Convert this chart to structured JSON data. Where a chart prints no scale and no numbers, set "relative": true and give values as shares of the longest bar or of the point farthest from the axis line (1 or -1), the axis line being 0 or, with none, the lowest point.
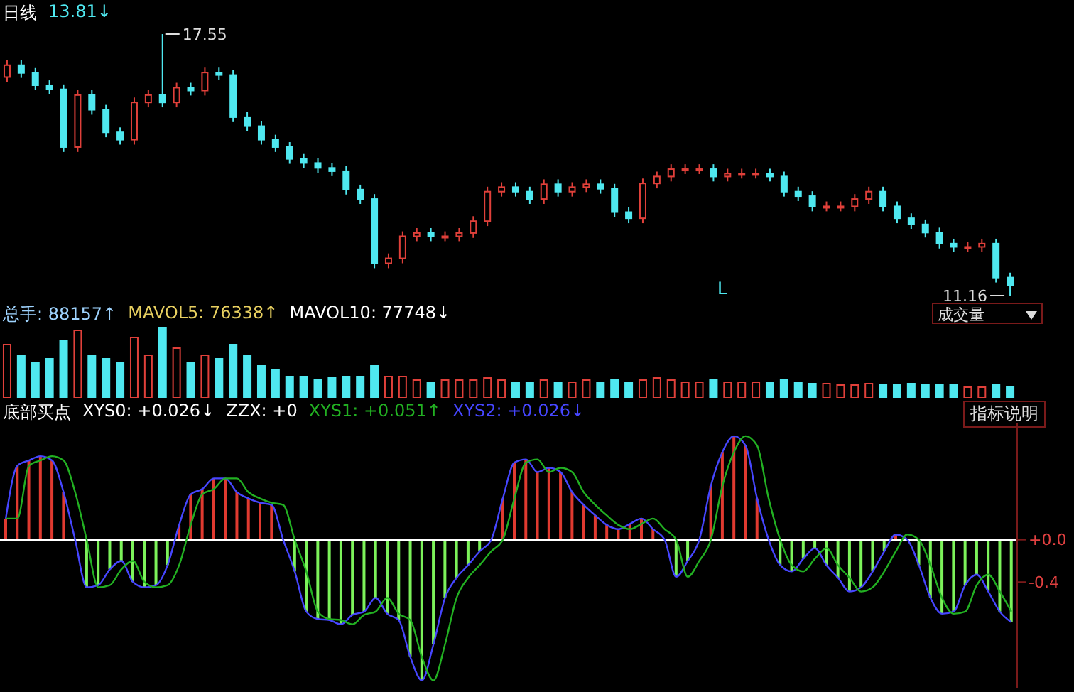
{
  "chart_data": [
    {
      "type": "candlestick",
      "title": "日线",
      "legend": false,
      "annotations": [
        "13.81↓",
        "17.55",
        "11.16",
        "L"
      ],
      "categories": [
        null,
        null,
        null,
        null,
        null,
        null,
        null,
        null,
        null,
        null,
        null,
        null,
        null,
        null,
        null,
        null,
        null,
        null,
        null,
        null,
        null,
        null,
        null,
        null,
        null,
        null,
        null,
        null,
        null,
        null,
        null,
        null,
        null,
        null,
        null,
        null,
        null,
        null,
        null,
        null,
        null,
        null,
        null,
        null,
        null,
        null,
        null,
        null,
        null,
        null,
        null,
        null,
        null,
        null,
        null,
        null,
        null,
        null,
        null,
        null,
        null,
        null,
        null,
        null,
        null,
        null,
        null,
        null,
        null,
        null,
        null,
        null
      ],
      "ohlc": [
        [
          16.5,
          16.91,
          16.38,
          16.79
        ],
        [
          16.79,
          16.91,
          16.48,
          16.6
        ],
        [
          16.6,
          16.72,
          16.18,
          16.3
        ],
        [
          16.3,
          16.42,
          16.08,
          16.2
        ],
        [
          16.2,
          16.32,
          14.67,
          14.79
        ],
        [
          14.79,
          16.18,
          14.67,
          16.06
        ],
        [
          16.06,
          16.18,
          15.58,
          15.7
        ],
        [
          15.7,
          15.82,
          15.03,
          15.15
        ],
        [
          15.15,
          15.27,
          14.85,
          14.97
        ],
        [
          14.97,
          16.0,
          14.85,
          15.88
        ],
        [
          15.88,
          16.18,
          15.76,
          16.06
        ],
        [
          16.06,
          17.55,
          15.76,
          15.88
        ],
        [
          15.88,
          16.36,
          15.76,
          16.24
        ],
        [
          16.24,
          16.36,
          16.05,
          16.17
        ],
        [
          16.17,
          16.73,
          16.05,
          16.61
        ],
        [
          16.61,
          16.73,
          16.43,
          16.55
        ],
        [
          16.55,
          16.67,
          15.4,
          15.52
        ],
        [
          15.52,
          15.64,
          15.18,
          15.3
        ],
        [
          15.3,
          15.42,
          14.85,
          14.97
        ],
        [
          14.97,
          15.09,
          14.67,
          14.79
        ],
        [
          14.79,
          14.91,
          14.38,
          14.5
        ],
        [
          14.5,
          14.62,
          14.28,
          14.4
        ],
        [
          14.4,
          14.52,
          14.16,
          14.28
        ],
        [
          14.28,
          14.4,
          14.08,
          14.2
        ],
        [
          14.2,
          14.32,
          13.63,
          13.75
        ],
        [
          13.75,
          13.87,
          13.4,
          13.52
        ],
        [
          13.52,
          13.64,
          11.83,
          11.95
        ],
        [
          11.95,
          12.19,
          11.83,
          12.07
        ],
        [
          12.07,
          12.73,
          11.95,
          12.61
        ],
        [
          12.61,
          12.81,
          12.49,
          12.69
        ],
        [
          12.69,
          12.81,
          12.49,
          12.61
        ],
        [
          12.61,
          12.73,
          12.49,
          12.61
        ],
        [
          12.61,
          12.81,
          12.49,
          12.69
        ],
        [
          12.69,
          13.1,
          12.57,
          12.98
        ],
        [
          12.98,
          13.82,
          12.86,
          13.7
        ],
        [
          13.7,
          13.93,
          13.58,
          13.81
        ],
        [
          13.81,
          13.93,
          13.58,
          13.7
        ],
        [
          13.7,
          13.82,
          13.4,
          13.52
        ],
        [
          13.52,
          14.0,
          13.4,
          13.88
        ],
        [
          13.88,
          14.0,
          13.58,
          13.7
        ],
        [
          13.7,
          13.93,
          13.58,
          13.81
        ],
        [
          13.81,
          14.0,
          13.69,
          13.88
        ],
        [
          13.88,
          14.0,
          13.65,
          13.77
        ],
        [
          13.77,
          13.89,
          13.08,
          13.2
        ],
        [
          13.2,
          13.32,
          12.93,
          13.05
        ],
        [
          13.05,
          14.02,
          12.93,
          13.9
        ],
        [
          13.9,
          14.19,
          13.78,
          14.07
        ],
        [
          14.07,
          14.37,
          13.95,
          14.25
        ],
        [
          14.25,
          14.37,
          14.13,
          14.25
        ],
        [
          14.25,
          14.37,
          14.13,
          14.25
        ],
        [
          14.25,
          14.37,
          13.95,
          14.07
        ],
        [
          14.07,
          14.26,
          13.95,
          14.14
        ],
        [
          14.14,
          14.26,
          14.02,
          14.14
        ],
        [
          14.14,
          14.26,
          14.02,
          14.14
        ],
        [
          14.14,
          14.26,
          13.95,
          14.07
        ],
        [
          14.07,
          14.19,
          13.58,
          13.7
        ],
        [
          13.7,
          13.82,
          13.47,
          13.59
        ],
        [
          13.59,
          13.71,
          13.22,
          13.34
        ],
        [
          13.34,
          13.46,
          13.22,
          13.34
        ],
        [
          13.34,
          13.46,
          13.22,
          13.34
        ],
        [
          13.34,
          13.64,
          13.22,
          13.52
        ],
        [
          13.52,
          13.82,
          13.4,
          13.7
        ],
        [
          13.7,
          13.82,
          13.22,
          13.34
        ],
        [
          13.34,
          13.46,
          12.93,
          13.05
        ],
        [
          13.05,
          13.17,
          12.78,
          12.9
        ],
        [
          12.9,
          13.02,
          12.58,
          12.7
        ],
        [
          12.7,
          12.82,
          12.31,
          12.43
        ],
        [
          12.43,
          12.55,
          12.23,
          12.35
        ],
        [
          12.35,
          12.47,
          12.23,
          12.35
        ],
        [
          12.35,
          12.55,
          12.23,
          12.43
        ],
        [
          12.43,
          12.55,
          11.48,
          11.6
        ],
        [
          11.6,
          11.72,
          11.16,
          11.42
        ]
      ]
    },
    {
      "type": "bar",
      "title": "成交量",
      "relative": true,
      "annotations": [
        "总手: 88157↑",
        "MAVOL5: 76338↑",
        "MAVOL10: 77748↓"
      ],
      "categories": [
        null,
        null,
        null,
        null,
        null,
        null,
        null,
        null,
        null,
        null,
        null,
        null,
        null,
        null,
        null,
        null,
        null,
        null,
        null,
        null,
        null,
        null,
        null,
        null,
        null,
        null,
        null,
        null,
        null,
        null,
        null,
        null,
        null,
        null,
        null,
        null,
        null,
        null,
        null,
        null,
        null,
        null,
        null,
        null,
        null,
        null,
        null,
        null,
        null,
        null,
        null,
        null,
        null,
        null,
        null,
        null,
        null,
        null,
        null,
        null,
        null,
        null,
        null,
        null,
        null,
        null,
        null,
        null,
        null,
        null,
        null,
        null
      ],
      "values": [
        0.75,
        0.6,
        0.5,
        0.55,
        0.8,
        0.95,
        0.6,
        0.55,
        0.5,
        0.85,
        0.6,
        1.0,
        0.7,
        0.5,
        0.6,
        0.55,
        0.75,
        0.6,
        0.45,
        0.4,
        0.3,
        0.3,
        0.25,
        0.28,
        0.3,
        0.3,
        0.45,
        0.3,
        0.3,
        0.25,
        0.22,
        0.25,
        0.25,
        0.25,
        0.28,
        0.25,
        0.22,
        0.22,
        0.25,
        0.22,
        0.22,
        0.25,
        0.22,
        0.25,
        0.22,
        0.25,
        0.28,
        0.25,
        0.22,
        0.22,
        0.25,
        0.22,
        0.22,
        0.22,
        0.22,
        0.25,
        0.22,
        0.2,
        0.2,
        0.18,
        0.18,
        0.2,
        0.18,
        0.18,
        0.2,
        0.18,
        0.18,
        0.18,
        0.15,
        0.15,
        0.18,
        0.15
      ],
      "colors": [
        "#e0403a",
        "#4fe8f0",
        "#4fe8f0",
        "#4fe8f0",
        "#4fe8f0",
        "#e0403a",
        "#4fe8f0",
        "#4fe8f0",
        "#4fe8f0",
        "#e0403a",
        "#e0403a",
        "#4fe8f0",
        "#e0403a",
        "#4fe8f0",
        "#e0403a",
        "#4fe8f0",
        "#4fe8f0",
        "#4fe8f0",
        "#4fe8f0",
        "#4fe8f0",
        "#4fe8f0",
        "#4fe8f0",
        "#4fe8f0",
        "#4fe8f0",
        "#4fe8f0",
        "#4fe8f0",
        "#4fe8f0",
        "#e0403a",
        "#e0403a",
        "#e0403a",
        "#4fe8f0",
        "#e0403a",
        "#e0403a",
        "#e0403a",
        "#e0403a",
        "#e0403a",
        "#4fe8f0",
        "#4fe8f0",
        "#e0403a",
        "#4fe8f0",
        "#e0403a",
        "#e0403a",
        "#4fe8f0",
        "#4fe8f0",
        "#4fe8f0",
        "#e0403a",
        "#e0403a",
        "#e0403a",
        "#e0403a",
        "#e0403a",
        "#4fe8f0",
        "#e0403a",
        "#e0403a",
        "#e0403a",
        "#4fe8f0",
        "#4fe8f0",
        "#4fe8f0",
        "#4fe8f0",
        "#e0403a",
        "#e0403a",
        "#e0403a",
        "#e0403a",
        "#4fe8f0",
        "#4fe8f0",
        "#4fe8f0",
        "#4fe8f0",
        "#4fe8f0",
        "#4fe8f0",
        "#e0403a",
        "#e0403a",
        "#4fe8f0",
        "#4fe8f0"
      ]
    },
    {
      "type": "bar",
      "title": "底部买点",
      "annotations": [
        "XYS0: +0.026↓",
        "ZZX: +0",
        "指标说明"
      ],
      "legend": "top left",
      "tick_labels": "y",
      "ylim": [
        -1.4,
        1.1
      ],
      "yticks": [
        {
          "value": 0,
          "label": "+0.0"
        },
        -0.4
      ],
      "ref_lines": [
        {
          "axis": "y",
          "value": 0,
          "color": "#ffffff"
        }
      ],
      "categories": [
        null,
        null,
        null,
        null,
        null,
        null,
        null,
        null,
        null,
        null,
        null,
        null,
        null,
        null,
        null,
        null,
        null,
        null,
        null,
        null,
        null,
        null,
        null,
        null,
        null,
        null,
        null,
        null,
        null,
        null,
        null,
        null,
        null,
        null,
        null,
        null,
        null,
        null,
        null,
        null,
        null,
        null,
        null,
        null,
        null,
        null,
        null,
        null,
        null,
        null,
        null,
        null,
        null,
        null,
        null,
        null,
        null,
        null,
        null,
        null,
        null,
        null,
        null,
        null,
        null,
        null,
        null,
        null,
        null,
        null,
        null,
        null,
        null,
        null,
        null,
        null,
        null,
        null,
        null,
        null,
        null,
        null,
        null,
        null,
        null,
        null,
        null,
        null
      ],
      "series": [
        {
          "type": "bar",
          "colors": [
            "#e03a30",
            "#e03a30",
            "#e03a30",
            "#e03a30",
            "#e03a30",
            "#e03a30",
            "#e03a30",
            "#7cf25a",
            "#7cf25a",
            "#7cf25a",
            "#7cf25a",
            "#7cf25a",
            "#7cf25a",
            "#7cf25a",
            "#7cf25a",
            "#e03a30",
            "#e03a30",
            "#e03a30",
            "#e03a30",
            "#e03a30",
            "#e03a30",
            "#e03a30",
            "#e03a30",
            "#e03a30",
            "#e03a30",
            "#7cf25a",
            "#7cf25a",
            "#7cf25a",
            "#7cf25a",
            "#7cf25a",
            "#7cf25a",
            "#7cf25a",
            "#7cf25a",
            "#7cf25a",
            "#7cf25a",
            "#7cf25a",
            "#7cf25a",
            "#7cf25a",
            "#7cf25a",
            "#7cf25a",
            "#7cf25a",
            "#7cf25a",
            "#e03a30",
            "#e03a30",
            "#e03a30",
            "#e03a30",
            "#e03a30",
            "#e03a30",
            "#e03a30",
            "#e03a30",
            "#e03a30",
            "#e03a30",
            "#e03a30",
            "#e03a30",
            "#e03a30",
            "#e03a30",
            "#e03a30",
            "#e03a30",
            "#7cf25a",
            "#7cf25a",
            "#e03a30",
            "#e03a30",
            "#e03a30",
            "#e03a30",
            "#e03a30",
            "#e03a30",
            "#e03a30",
            "#7cf25a",
            "#7cf25a",
            "#7cf25a",
            "#7cf25a",
            "#7cf25a",
            "#7cf25a",
            "#7cf25a",
            "#7cf25a",
            "#7cf25a",
            "#7cf25a",
            "#e03a30",
            "#e03a30",
            "#7cf25a",
            "#7cf25a",
            "#7cf25a",
            "#7cf25a",
            "#7cf25a",
            "#7cf25a",
            "#7cf25a",
            "#7cf25a",
            "#7cf25a"
          ],
          "values": [
            0.2,
            0.7,
            0.75,
            0.79,
            0.75,
            0.45,
            0,
            -0.45,
            -0.43,
            -0.28,
            -0.2,
            -0.4,
            -0.45,
            -0.43,
            -0.24,
            0.14,
            0.43,
            0.48,
            0.58,
            0.58,
            0.45,
            0.39,
            0.35,
            0.33,
            0,
            -0.3,
            -0.68,
            -0.75,
            -0.76,
            -0.8,
            -0.71,
            -0.68,
            -0.55,
            -0.7,
            -0.76,
            -1.11,
            -1.33,
            -0.99,
            -0.55,
            -0.36,
            -0.24,
            -0.11,
            0,
            0.39,
            0.73,
            0.76,
            0.64,
            0.68,
            0.64,
            0.45,
            0.33,
            0.23,
            0.14,
            0.1,
            0.15,
            0.2,
            0.1,
            0,
            -0.35,
            -0.2,
            0,
            0.51,
            0.83,
            0.98,
            0.89,
            0.39,
            0,
            -0.24,
            -0.3,
            -0.18,
            -0.08,
            -0.24,
            -0.36,
            -0.49,
            -0.45,
            -0.3,
            -0.11,
            0.05,
            0,
            -0.24,
            -0.55,
            -0.7,
            -0.68,
            -0.43,
            -0.33,
            -0.49,
            -0.68,
            -0.78
          ]
        },
        {
          "type": "line",
          "name": "XYS1: +0.051↑",
          "color": "#22b022",
          "values": [
            0.2,
            0.2,
            0.7,
            0.75,
            0.79,
            0.75,
            0.45,
            0,
            -0.45,
            -0.43,
            -0.28,
            -0.2,
            -0.4,
            -0.45,
            -0.43,
            -0.24,
            0.14,
            0.43,
            0.48,
            0.58,
            0.58,
            0.45,
            0.39,
            0.35,
            0.33,
            0,
            -0.3,
            -0.68,
            -0.75,
            -0.76,
            -0.8,
            -0.71,
            -0.68,
            -0.55,
            -0.7,
            -0.76,
            -1.11,
            -1.33,
            -0.99,
            -0.55,
            -0.36,
            -0.24,
            -0.11,
            0,
            0.39,
            0.73,
            0.76,
            0.64,
            0.68,
            0.64,
            0.45,
            0.33,
            0.23,
            0.14,
            0.1,
            0.15,
            0.2,
            0.1,
            0,
            -0.35,
            -0.2,
            0,
            0.51,
            0.83,
            0.98,
            0.89,
            0.39,
            0,
            -0.24,
            -0.3,
            -0.18,
            -0.08,
            -0.24,
            -0.36,
            -0.49,
            -0.45,
            -0.3,
            -0.11,
            0.05,
            0,
            -0.24,
            -0.55,
            -0.7,
            -0.68,
            -0.43,
            -0.33,
            -0.49,
            -0.68
          ]
        },
        {
          "type": "line",
          "name": "XYS2: +0.026↓",
          "color": "#4646ff",
          "values": [
            0.2,
            0.7,
            0.75,
            0.79,
            0.75,
            0.45,
            0,
            -0.45,
            -0.43,
            -0.28,
            -0.2,
            -0.4,
            -0.45,
            -0.43,
            -0.24,
            0.14,
            0.43,
            0.48,
            0.58,
            0.58,
            0.45,
            0.39,
            0.35,
            0.33,
            0,
            -0.3,
            -0.68,
            -0.75,
            -0.76,
            -0.8,
            -0.71,
            -0.68,
            -0.55,
            -0.7,
            -0.76,
            -1.11,
            -1.33,
            -0.99,
            -0.55,
            -0.36,
            -0.24,
            -0.11,
            0,
            0.39,
            0.73,
            0.76,
            0.64,
            0.68,
            0.64,
            0.45,
            0.33,
            0.23,
            0.14,
            0.1,
            0.15,
            0.2,
            0.1,
            0,
            -0.35,
            -0.2,
            0,
            0.51,
            0.83,
            0.98,
            0.89,
            0.39,
            0,
            -0.24,
            -0.3,
            -0.18,
            -0.08,
            -0.24,
            -0.36,
            -0.49,
            -0.45,
            -0.3,
            -0.11,
            0.05,
            0,
            -0.24,
            -0.55,
            -0.7,
            -0.68,
            -0.43,
            -0.33,
            -0.49,
            -0.68,
            -0.78
          ]
        }
      ]
    }
  ]
}
